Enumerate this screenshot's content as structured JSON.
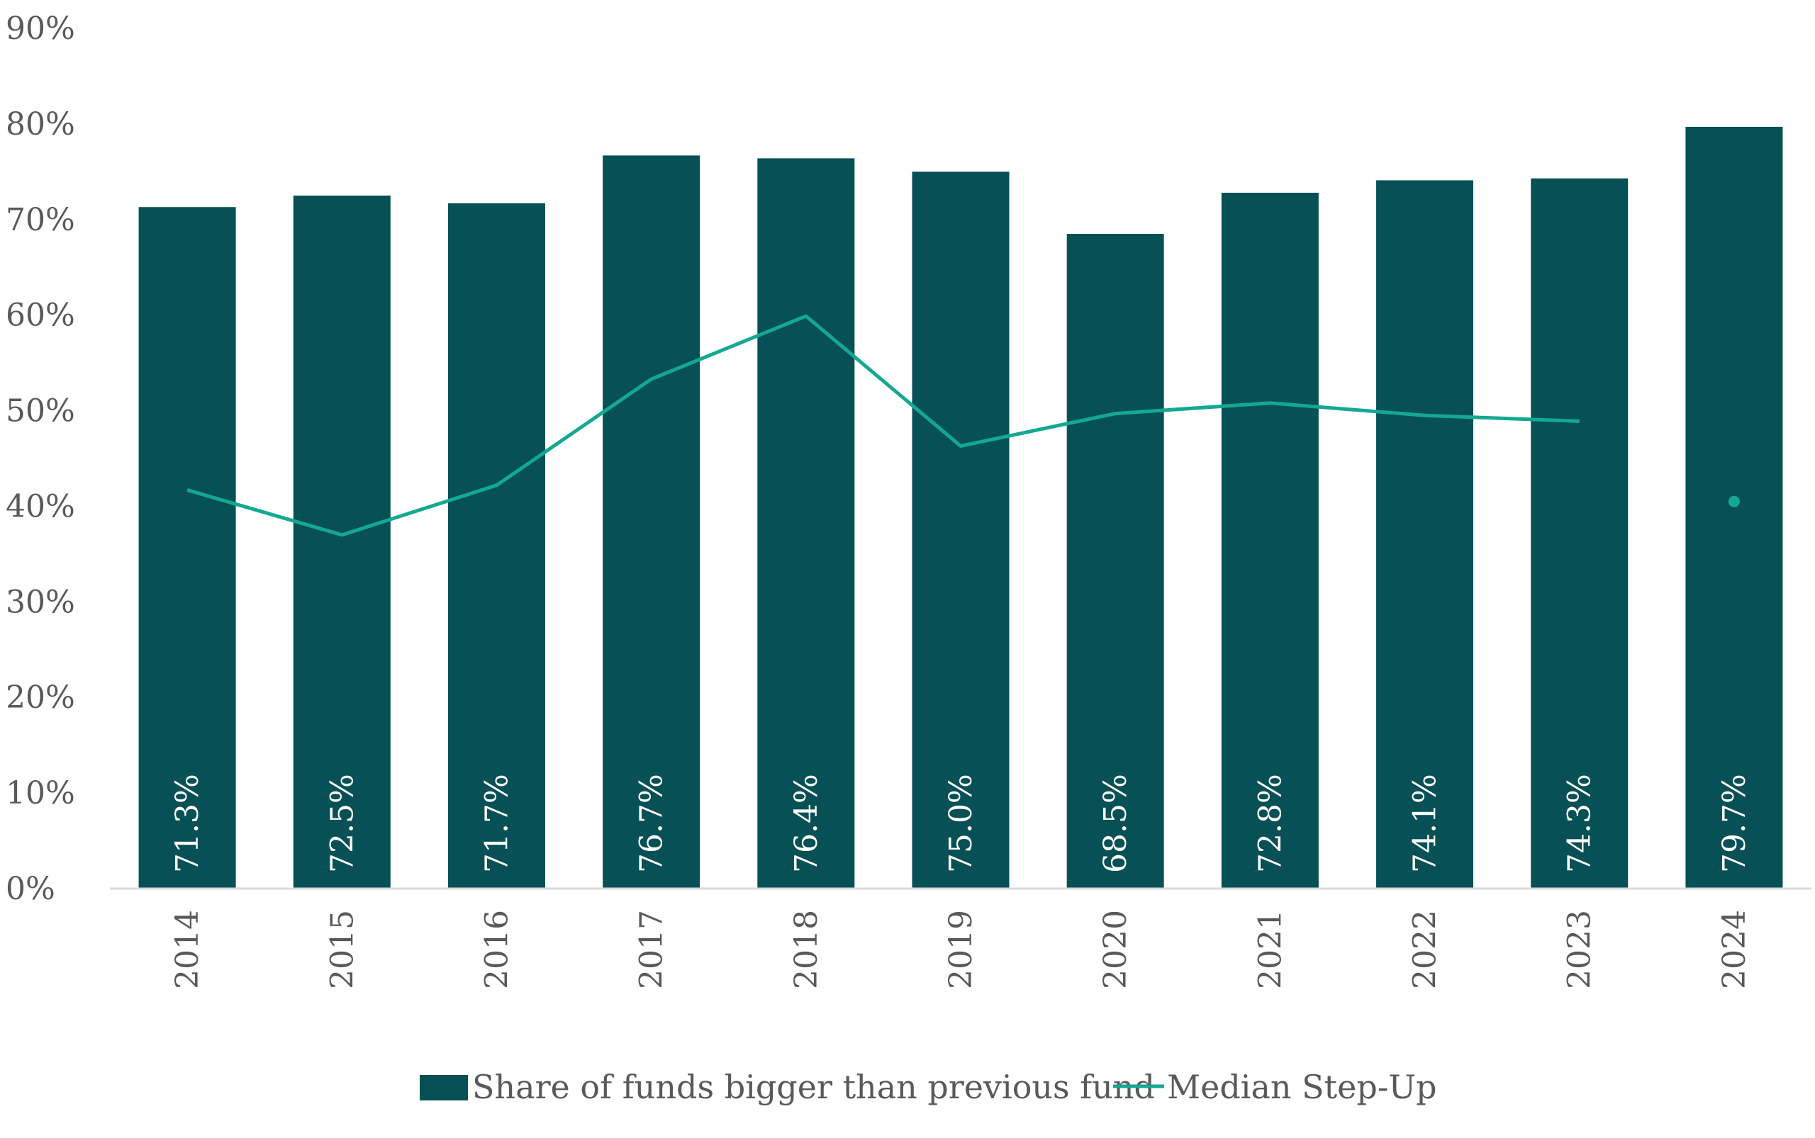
{
  "chart_data": {
    "type": "bar",
    "title": "",
    "xlabel": "",
    "ylabel": "",
    "categories": [
      "2014",
      "2015",
      "2016",
      "2017",
      "2018",
      "2019",
      "2020",
      "2021",
      "2022",
      "2023",
      "2024"
    ],
    "ylim": [
      0,
      90
    ],
    "yticks": [
      0,
      10,
      20,
      30,
      40,
      50,
      60,
      70,
      80,
      90
    ],
    "ytick_labels": [
      "0%",
      "10%",
      "20%",
      "30%",
      "40%",
      "50%",
      "60%",
      "70%",
      "80%",
      "90%"
    ],
    "grid": false,
    "legend_position": "bottom",
    "series": [
      {
        "name": "Share of funds bigger than previous fund",
        "type": "bar",
        "color": "#075055",
        "values": [
          71.3,
          72.5,
          71.7,
          76.7,
          76.4,
          75.0,
          68.5,
          72.8,
          74.1,
          74.3,
          79.7
        ],
        "data_labels": [
          "71.3%",
          "72.5%",
          "71.7%",
          "76.7%",
          "76.4%",
          "75.0%",
          "68.5%",
          "72.8%",
          "74.1%",
          "74.3%",
          "79.7%"
        ]
      },
      {
        "name": "Median Step-Up",
        "type": "line",
        "color": "#13A891",
        "values": [
          41.7,
          37.0,
          42.2,
          53.3,
          59.9,
          46.3,
          49.7,
          50.8,
          49.5,
          48.9,
          40.5
        ],
        "line_breaks_before": [
          10
        ]
      }
    ]
  }
}
